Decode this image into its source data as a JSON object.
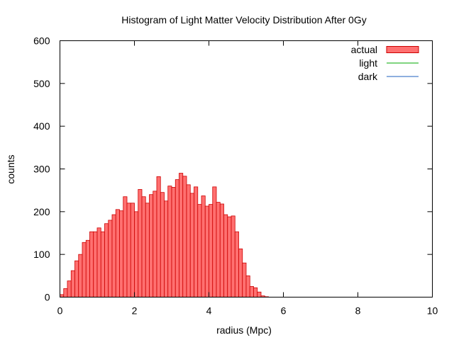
{
  "chart_data": {
    "type": "bar",
    "title": "Histogram of Light Matter Velocity Distribution After 0Gy",
    "xlabel": "radius (Mpc)",
    "ylabel": "counts",
    "xlim": [
      0,
      10
    ],
    "ylim": [
      0,
      600
    ],
    "xticks": [
      0,
      2,
      4,
      6,
      8,
      10
    ],
    "yticks": [
      0,
      100,
      200,
      300,
      400,
      500,
      600
    ],
    "grid": false,
    "legend_position": "top-right",
    "bin_width": 0.1,
    "series": [
      {
        "name": "actual",
        "style": "histogram",
        "color": "#ff7070",
        "edge_color": "#cc0000",
        "x": [
          0.05,
          0.15,
          0.25,
          0.35,
          0.45,
          0.55,
          0.65,
          0.75,
          0.85,
          0.95,
          1.05,
          1.15,
          1.25,
          1.35,
          1.45,
          1.55,
          1.65,
          1.75,
          1.85,
          1.95,
          2.05,
          2.15,
          2.25,
          2.35,
          2.45,
          2.55,
          2.65,
          2.75,
          2.85,
          2.95,
          3.05,
          3.15,
          3.25,
          3.35,
          3.45,
          3.55,
          3.65,
          3.75,
          3.85,
          3.95,
          4.05,
          4.15,
          4.25,
          4.35,
          4.45,
          4.55,
          4.65,
          4.75,
          4.85,
          4.95,
          5.05,
          5.15,
          5.25,
          5.35,
          5.45,
          5.55,
          5.65,
          5.75,
          5.85
        ],
        "values": [
          6,
          20,
          38,
          62,
          85,
          100,
          128,
          133,
          153,
          153,
          162,
          153,
          172,
          180,
          193,
          205,
          202,
          235,
          220,
          220,
          200,
          252,
          235,
          220,
          240,
          248,
          282,
          245,
          225,
          260,
          257,
          275,
          290,
          283,
          263,
          243,
          258,
          217,
          237,
          213,
          217,
          258,
          222,
          218,
          193,
          188,
          190,
          153,
          113,
          80,
          50,
          25,
          22,
          12,
          3,
          1,
          0,
          0,
          0
        ]
      },
      {
        "name": "light",
        "style": "line",
        "color": "#00aa00",
        "x": [
          0,
          10
        ],
        "values": [
          0,
          0
        ]
      },
      {
        "name": "dark",
        "style": "line",
        "color": "#1f5fbf",
        "x": [
          0,
          10
        ],
        "values": [
          0,
          0
        ]
      }
    ]
  }
}
